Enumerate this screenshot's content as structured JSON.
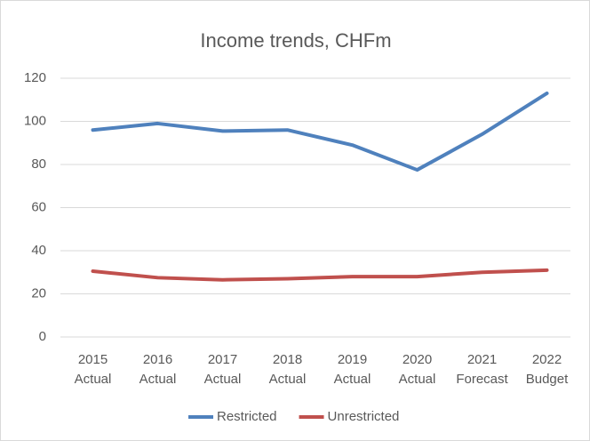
{
  "chart_data": {
    "type": "line",
    "title": "Income trends, CHFm",
    "categories": [
      [
        "2015",
        "Actual"
      ],
      [
        "2016",
        "Actual"
      ],
      [
        "2017",
        "Actual"
      ],
      [
        "2018",
        "Actual"
      ],
      [
        "2019",
        "Actual"
      ],
      [
        "2020",
        "Actual"
      ],
      [
        "2021",
        "Forecast"
      ],
      [
        "2022",
        "Budget"
      ]
    ],
    "series": [
      {
        "name": "Restricted",
        "color": "#4f81bd",
        "values": [
          96,
          99,
          95.5,
          96,
          89,
          77.5,
          94,
          113
        ]
      },
      {
        "name": "Unrestricted",
        "color": "#c0504d",
        "values": [
          30.5,
          27.5,
          26.5,
          27,
          28,
          28,
          30,
          31
        ]
      }
    ],
    "ylim": [
      0,
      120
    ],
    "yticks": [
      0,
      20,
      40,
      60,
      80,
      100,
      120
    ],
    "grid": true,
    "legend": "bottom"
  }
}
